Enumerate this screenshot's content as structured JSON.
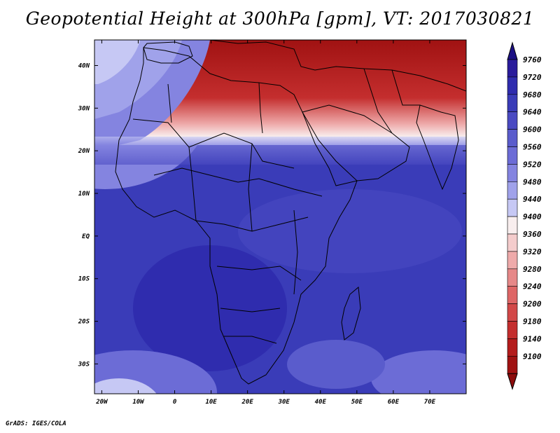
{
  "title": "Geopotential Height at 300hPa [gpm], VT: 2017030821",
  "footer": "GrADS: IGES/COLA",
  "map": {
    "variable": "Geopotential Height",
    "level": "300hPa",
    "units": "gpm",
    "valid_time": "2017030821",
    "domain": {
      "lon": [
        -22,
        80
      ],
      "lat": [
        -37,
        46
      ]
    },
    "lon_ticks": [
      "20W",
      "10W",
      "0",
      "10E",
      "20E",
      "30E",
      "40E",
      "50E",
      "60E",
      "70E"
    ],
    "lon_values": [
      -20,
      -10,
      0,
      10,
      20,
      30,
      40,
      50,
      60,
      70
    ],
    "lat_ticks": [
      "40N",
      "30N",
      "20N",
      "10N",
      "EQ",
      "10S",
      "20S",
      "30S"
    ],
    "lat_values": [
      40,
      30,
      20,
      10,
      0,
      -10,
      -20,
      -30
    ]
  },
  "colorbar": {
    "labels": [
      "9760",
      "9720",
      "9680",
      "9640",
      "9600",
      "9560",
      "9520",
      "9480",
      "9440",
      "9400",
      "9360",
      "9320",
      "9280",
      "9240",
      "9200",
      "9180",
      "9140",
      "9100"
    ],
    "colors": [
      "#2a1c9c",
      "#2f2cae",
      "#3a3cb8",
      "#4a4ac2",
      "#5a5ccc",
      "#6c6cd6",
      "#8484e0",
      "#a0a2ea",
      "#c6c8f4",
      "#f8eeee",
      "#f4cccc",
      "#eeaaaa",
      "#e68888",
      "#de6666",
      "#d24848",
      "#c42e2e",
      "#b41c1c",
      "#a01212"
    ],
    "top_color": "#1c1084",
    "bottom_color": "#8c0c0c"
  }
}
